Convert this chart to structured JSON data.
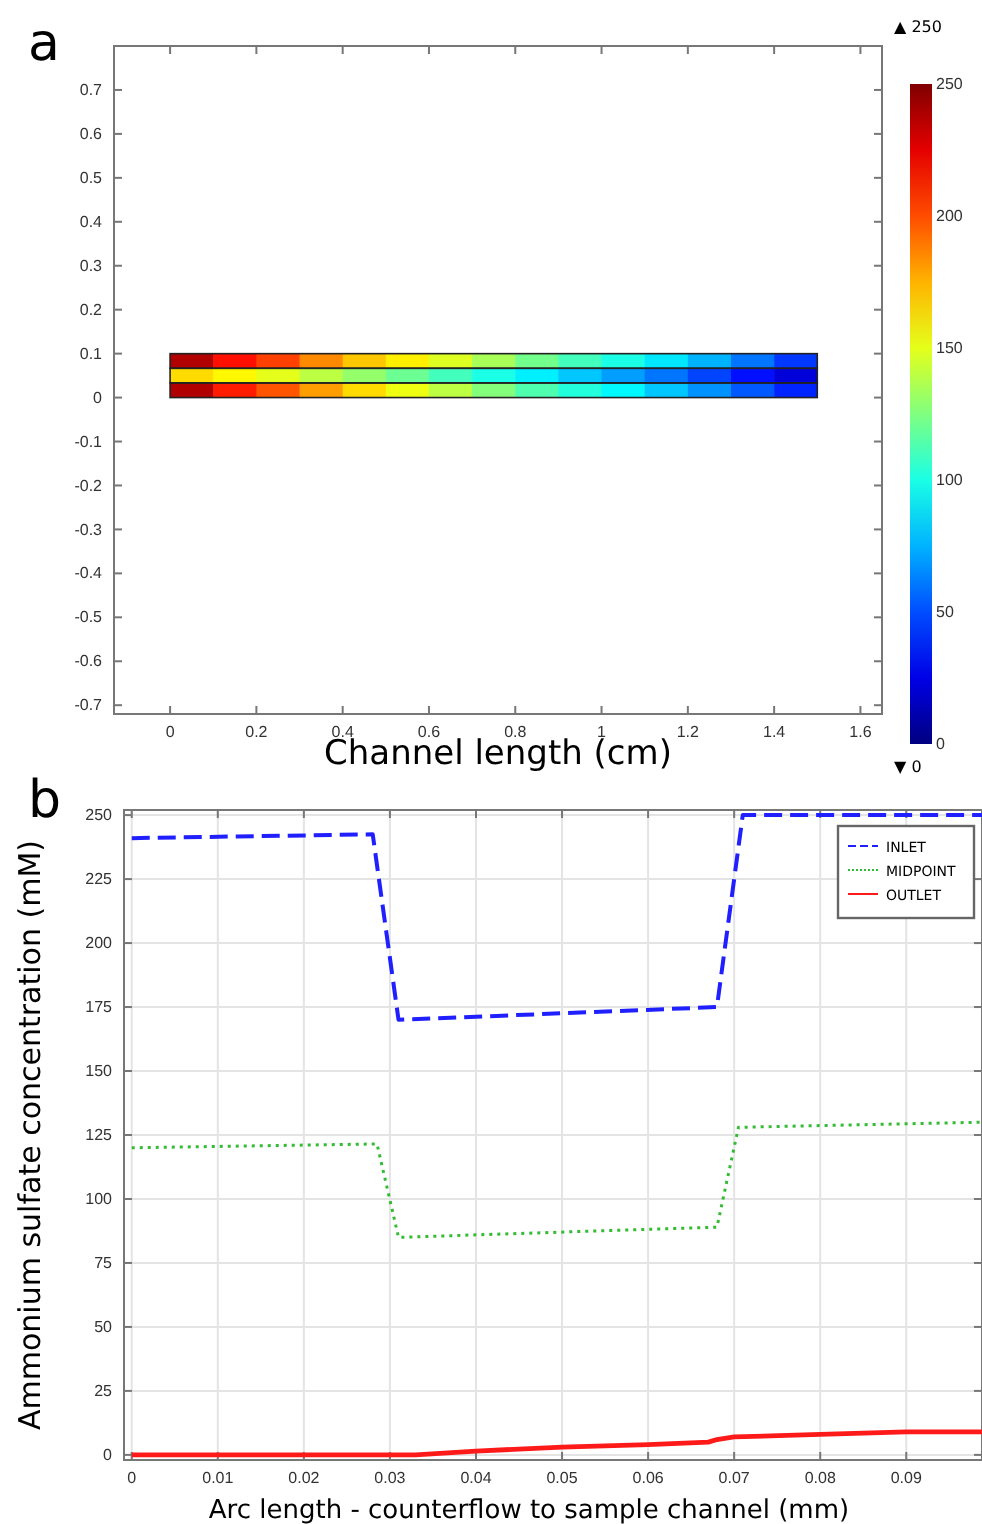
{
  "chart_data": [
    {
      "type": "heatmap",
      "xlabel": "Channel length (cm)",
      "annotations": [
        "a",
        "▲ 250",
        "▼ 0"
      ],
      "x": [
        0.05,
        0.15,
        0.25,
        0.35,
        0.45,
        0.55,
        0.65,
        0.75,
        0.85,
        0.95,
        1.05,
        1.15,
        1.25,
        1.35,
        1.45
      ],
      "y": [
        0.0833,
        0.05,
        0.0167
      ],
      "cells": [
        [
          238,
          215,
          203,
          185,
          170,
          160,
          148,
          135,
          122,
          110,
          100,
          88,
          75,
          60,
          45
        ],
        [
          165,
          158,
          150,
          140,
          130,
          120,
          110,
          100,
          90,
          80,
          70,
          60,
          48,
          35,
          22
        ],
        [
          238,
          212,
          198,
          180,
          165,
          152,
          140,
          126,
          113,
          102,
          92,
          80,
          67,
          53,
          40
        ]
      ],
      "xlim": [
        -0.13,
        1.65
      ],
      "xticks": [
        0,
        0.2,
        0.4,
        0.6,
        0.8,
        1,
        1.2,
        1.4,
        1.6
      ],
      "ylim": [
        -0.72,
        0.8
      ],
      "yticks": [
        -0.7,
        -0.6,
        -0.5,
        -0.4,
        -0.3,
        -0.2,
        -0.1,
        0,
        0.1,
        0.2,
        0.3,
        0.4,
        0.5,
        0.6,
        0.7
      ],
      "clim": [
        0,
        250
      ],
      "cticks": [
        0,
        50,
        100,
        150,
        200,
        250
      ]
    },
    {
      "type": "line",
      "ylabel": "Ammonium sulfate concentration (mM)",
      "xlabel": "Arc length - counterflow to sample channel (mm)",
      "annotations": [
        "b"
      ],
      "xlim": [
        -0.0009,
        0.0988
      ],
      "xticks": [
        0,
        0.01,
        0.02,
        0.03,
        0.04,
        0.05,
        0.06,
        0.07,
        0.08,
        0.09
      ],
      "ylim": [
        -2,
        252
      ],
      "yticks": [
        0,
        25,
        50,
        75,
        100,
        125,
        150,
        175,
        200,
        225,
        250
      ],
      "grid": true,
      "legend": "top right",
      "series": [
        {
          "name": "INLET",
          "color": "#1f1fff",
          "line_style": "dashed",
          "x": [
            0,
            0.028,
            0.031,
            0.068,
            0.071,
            0.0988
          ],
          "values": [
            241,
            242.5,
            170,
            175,
            250,
            250
          ]
        },
        {
          "name": "MIDPOINT",
          "color": "#33bb33",
          "line_style": "dotted",
          "x": [
            0,
            0.0285,
            0.031,
            0.068,
            0.0705,
            0.0988
          ],
          "values": [
            120,
            121.5,
            85,
            89,
            128,
            130
          ]
        },
        {
          "name": "OUTLET",
          "color": "#ff1a1a",
          "line_style": "solid",
          "x": [
            0,
            0.033,
            0.04,
            0.05,
            0.06,
            0.067,
            0.068,
            0.07,
            0.08,
            0.09,
            0.0988
          ],
          "values": [
            0,
            0,
            1.5,
            3,
            4,
            5,
            6,
            7,
            8,
            9,
            9
          ]
        }
      ]
    }
  ]
}
